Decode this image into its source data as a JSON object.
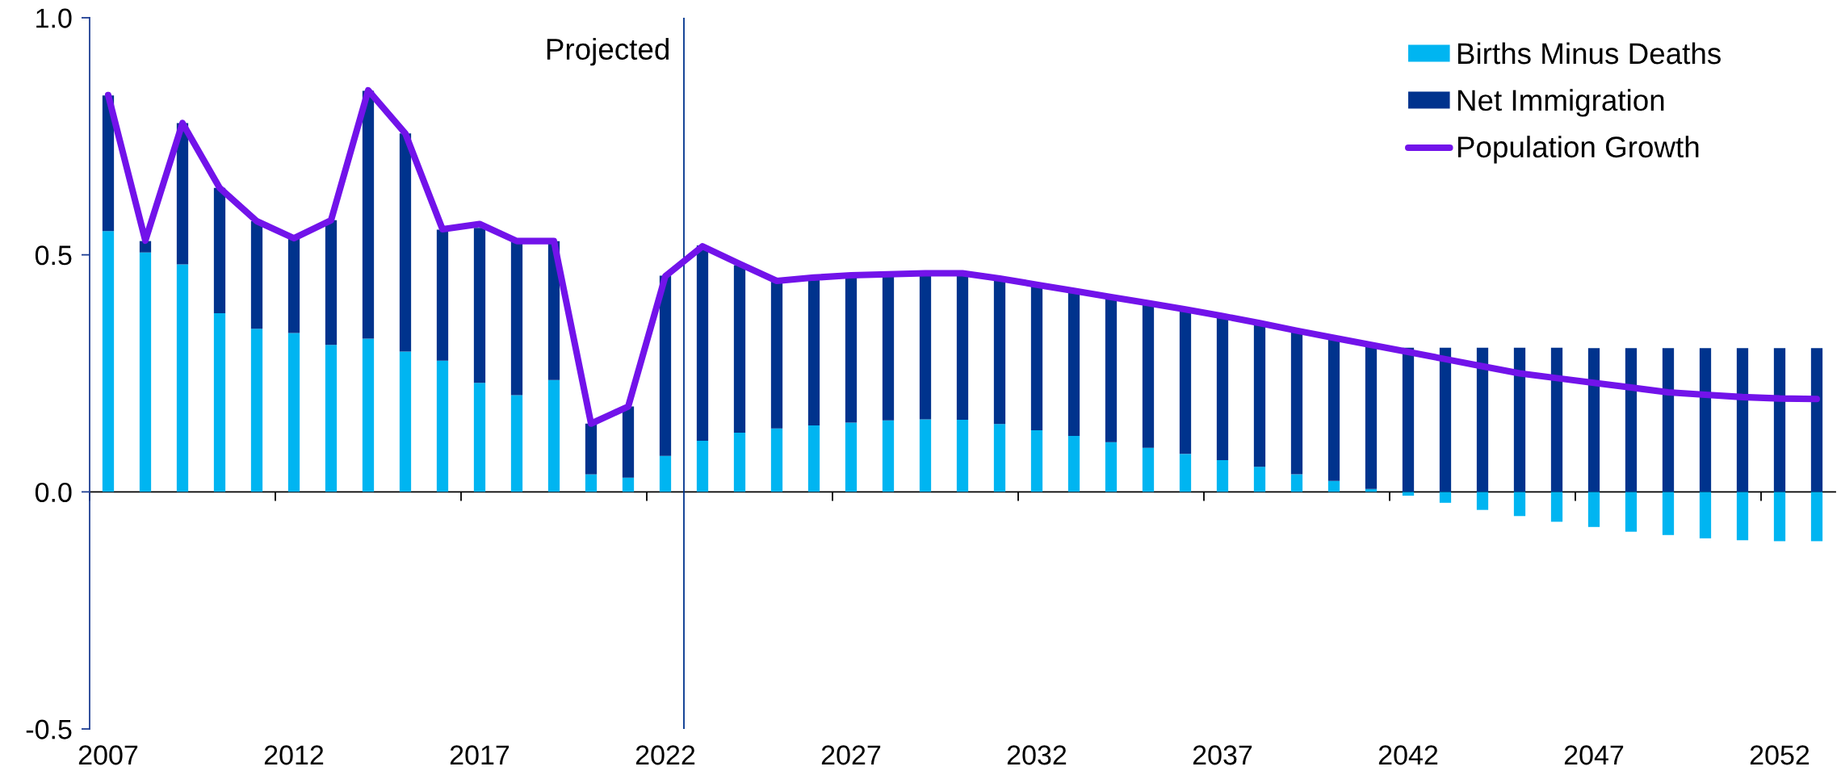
{
  "chart_data": {
    "type": "bar",
    "stacked": true,
    "legend": "top right",
    "x": [
      2007,
      2008,
      2009,
      2010,
      2011,
      2012,
      2013,
      2014,
      2015,
      2016,
      2017,
      2018,
      2019,
      2020,
      2021,
      2022,
      2023,
      2024,
      2025,
      2026,
      2027,
      2028,
      2029,
      2030,
      2031,
      2032,
      2033,
      2034,
      2035,
      2036,
      2037,
      2038,
      2039,
      2040,
      2041,
      2042,
      2043,
      2044,
      2045,
      2046,
      2047,
      2048,
      2049,
      2050,
      2051,
      2052,
      2053
    ],
    "xlim": [
      2006.5,
      2053.5
    ],
    "xticks": [
      2007,
      2012,
      2017,
      2022,
      2027,
      2032,
      2037,
      2042,
      2047,
      2052
    ],
    "ylim": [
      -0.5,
      1.0
    ],
    "yticks": [
      {
        "value": 1.0,
        "label": "1.0"
      },
      0.5,
      {
        "value": 0,
        "label": "0.0"
      },
      {
        "value": -0.5,
        "label": "-0.5"
      }
    ],
    "series": [
      {
        "name": "Births Minus Deaths",
        "color": "#00b5f1",
        "values": [
          0.55,
          0.505,
          0.48,
          0.377,
          0.344,
          0.335,
          0.31,
          0.323,
          0.296,
          0.277,
          0.23,
          0.204,
          0.236,
          0.037,
          0.03,
          0.076,
          0.108,
          0.125,
          0.134,
          0.14,
          0.146,
          0.151,
          0.153,
          0.152,
          0.143,
          0.13,
          0.118,
          0.105,
          0.093,
          0.08,
          0.067,
          0.053,
          0.037,
          0.023,
          0.006,
          -0.008,
          -0.023,
          -0.038,
          -0.051,
          -0.063,
          -0.074,
          -0.084,
          -0.091,
          -0.098,
          -0.102,
          -0.104,
          -0.104
        ]
      },
      {
        "name": "Net Immigration",
        "color": "#00338d",
        "values": [
          0.286,
          0.024,
          0.298,
          0.264,
          0.227,
          0.199,
          0.263,
          0.523,
          0.46,
          0.276,
          0.327,
          0.325,
          0.293,
          0.107,
          0.15,
          0.38,
          0.412,
          0.353,
          0.311,
          0.311,
          0.31,
          0.308,
          0.309,
          0.309,
          0.307,
          0.307,
          0.306,
          0.306,
          0.305,
          0.305,
          0.304,
          0.303,
          0.303,
          0.302,
          0.303,
          0.304,
          0.304,
          0.304,
          0.304,
          0.304,
          0.303,
          0.303,
          0.303,
          0.303,
          0.303,
          0.303,
          0.303
        ]
      },
      {
        "name": "Population Growth",
        "type": "line",
        "color": "#7213ea",
        "values": [
          0.837,
          0.53,
          0.778,
          0.641,
          0.571,
          0.535,
          0.573,
          0.847,
          0.756,
          0.554,
          0.565,
          0.529,
          0.529,
          0.144,
          0.18,
          0.455,
          0.518,
          0.481,
          0.445,
          0.452,
          0.457,
          0.459,
          0.461,
          0.461,
          0.45,
          0.437,
          0.424,
          0.411,
          0.398,
          0.385,
          0.371,
          0.356,
          0.34,
          0.325,
          0.31,
          0.295,
          0.28,
          0.265,
          0.25,
          0.24,
          0.23,
          0.22,
          0.21,
          0.205,
          0.2,
          0.197,
          0.196
        ]
      }
    ],
    "ref_lines": [
      {
        "axis": "x",
        "value": 2022.5,
        "label": "Projected",
        "color": "#00338d"
      }
    ]
  }
}
